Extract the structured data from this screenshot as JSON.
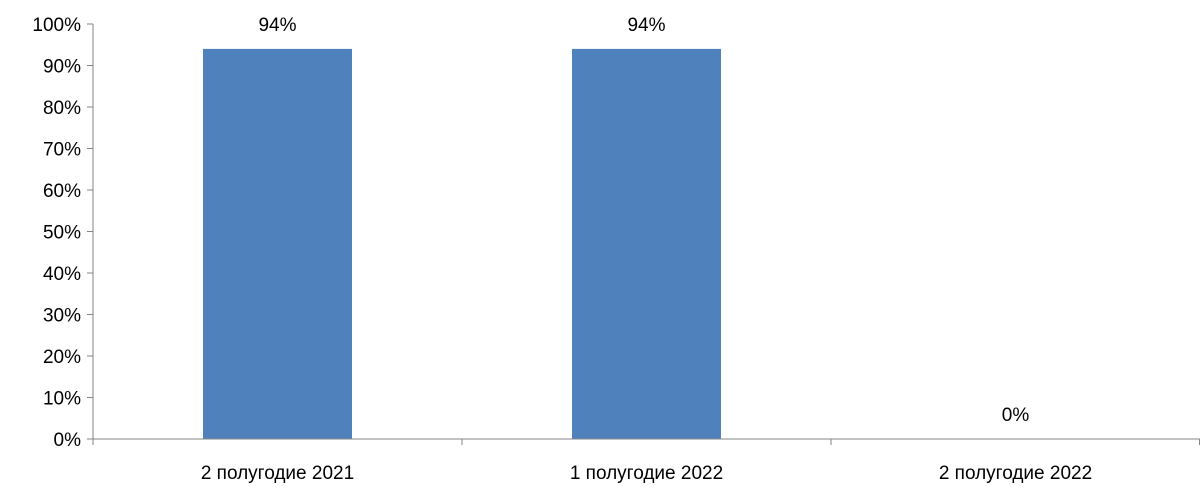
{
  "chart_data": {
    "type": "bar",
    "categories": [
      "2 полугодие 2021",
      "1 полугодие 2022",
      "2 полугодие 2022"
    ],
    "values": [
      94,
      94,
      0
    ],
    "data_labels": [
      "94%",
      "94%",
      "0%"
    ],
    "ylim": [
      0,
      100
    ],
    "yticks": [
      0,
      10,
      20,
      30,
      40,
      50,
      60,
      70,
      80,
      90,
      100
    ],
    "ytick_labels": [
      "0%",
      "10%",
      "20%",
      "30%",
      "40%",
      "50%",
      "60%",
      "70%",
      "80%",
      "90%",
      "100%"
    ],
    "grid": false,
    "legend": "none",
    "colors": {
      "bar": "#4F81BD",
      "axis": "#868686"
    }
  }
}
